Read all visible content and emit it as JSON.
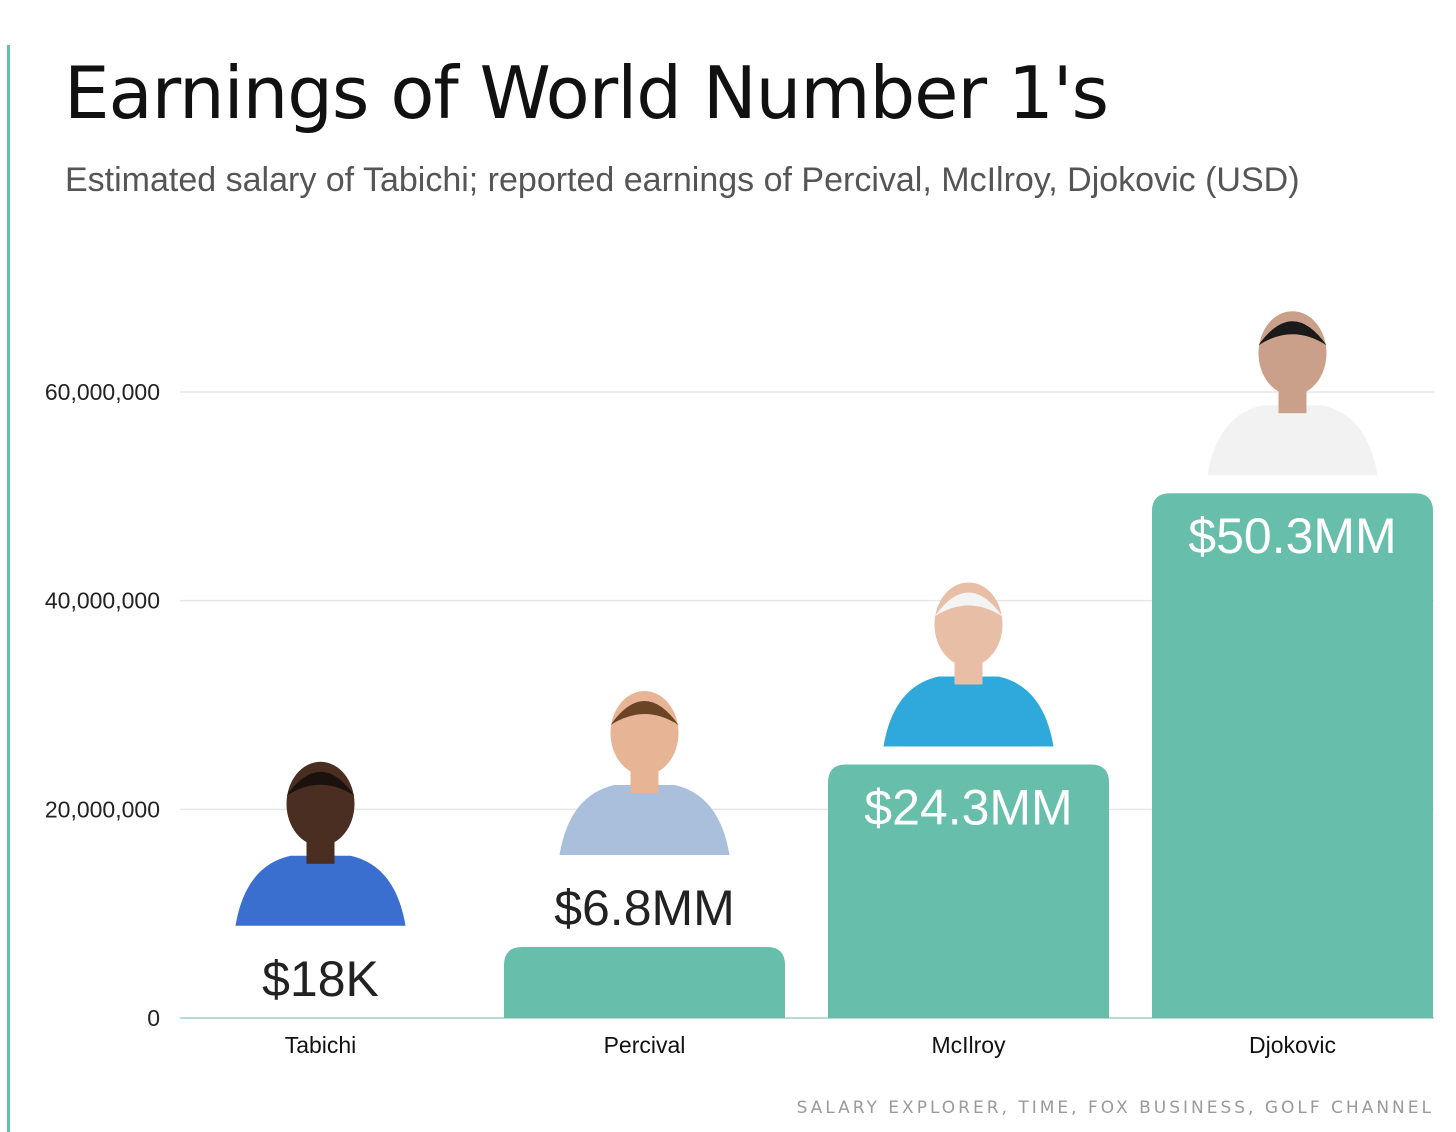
{
  "header": {
    "title": "Earnings of World Number 1's",
    "subtitle": "Estimated salary of Tabichi; reported earnings of Percival, McIlroy, Djokovic (USD)"
  },
  "source": "SALARY EXPLORER, TIME, FOX BUSINESS, GOLF CHANNEL",
  "colors": {
    "bar": "#67bfab",
    "accent": "#67bfab",
    "label_dark": "#222222",
    "label_light": "#ffffff",
    "grid": "#e6e6e6"
  },
  "chart_data": {
    "type": "bar",
    "categories": [
      "Tabichi",
      "Percival",
      "McIlroy",
      "Djokovic"
    ],
    "values": [
      18000,
      6800000,
      24300000,
      50300000
    ],
    "data_labels": [
      "$18K",
      "$6.8MM",
      "$24.3MM",
      "$50.3MM"
    ],
    "ylim": [
      0,
      60000000
    ],
    "yticks": [
      0,
      20000000,
      40000000,
      60000000
    ],
    "ytick_labels": [
      "0",
      "20,000,000",
      "40,000,000",
      "60,000,000"
    ],
    "grid": true,
    "photos": [
      "Tabichi photo",
      "Percival photo",
      "McIlroy photo",
      "Djokovic photo"
    ]
  }
}
